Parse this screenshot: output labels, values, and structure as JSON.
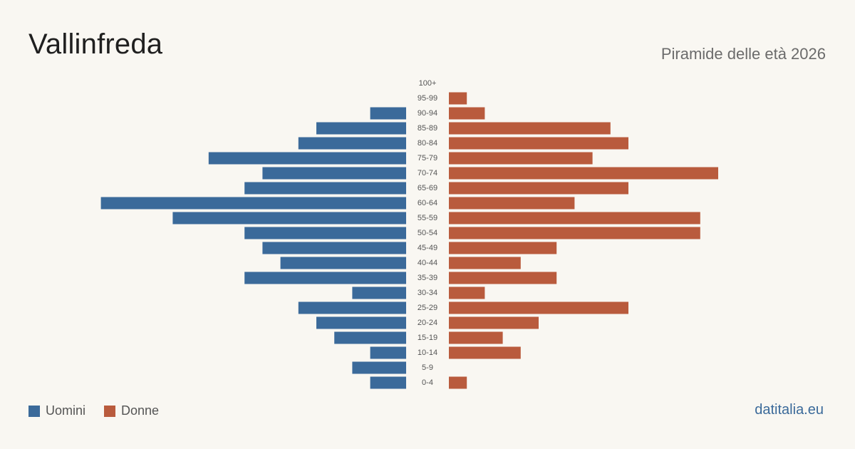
{
  "header": {
    "title": "Vallinfreda",
    "subtitle": "Piramide delle età 2026"
  },
  "legend": {
    "men_label": "Uomini",
    "women_label": "Donne"
  },
  "source": "datitalia.eu",
  "colors": {
    "men": "#3b6a9a",
    "women": "#b95b3d",
    "background": "#f9f7f2"
  },
  "chart_data": {
    "type": "bar",
    "orientation": "horizontal-pyramid",
    "title": "Vallinfreda",
    "subtitle": "Piramide delle età 2026",
    "categories": [
      "100+",
      "95-99",
      "90-94",
      "85-89",
      "80-84",
      "75-79",
      "70-74",
      "65-69",
      "60-64",
      "55-59",
      "50-54",
      "45-49",
      "40-44",
      "35-39",
      "30-34",
      "25-29",
      "20-24",
      "15-19",
      "10-14",
      "5-9",
      "0-4"
    ],
    "series": [
      {
        "name": "Uomini",
        "values": [
          0,
          0,
          2,
          5,
          6,
          11,
          8,
          9,
          17,
          13,
          9,
          8,
          7,
          9,
          3,
          6,
          5,
          4,
          2,
          3,
          2
        ]
      },
      {
        "name": "Donne",
        "values": [
          0,
          1,
          2,
          9,
          10,
          8,
          15,
          10,
          7,
          14,
          14,
          6,
          4,
          6,
          2,
          10,
          5,
          3,
          4,
          0,
          1
        ]
      }
    ],
    "legend": "bottom-left",
    "grid": false
  }
}
